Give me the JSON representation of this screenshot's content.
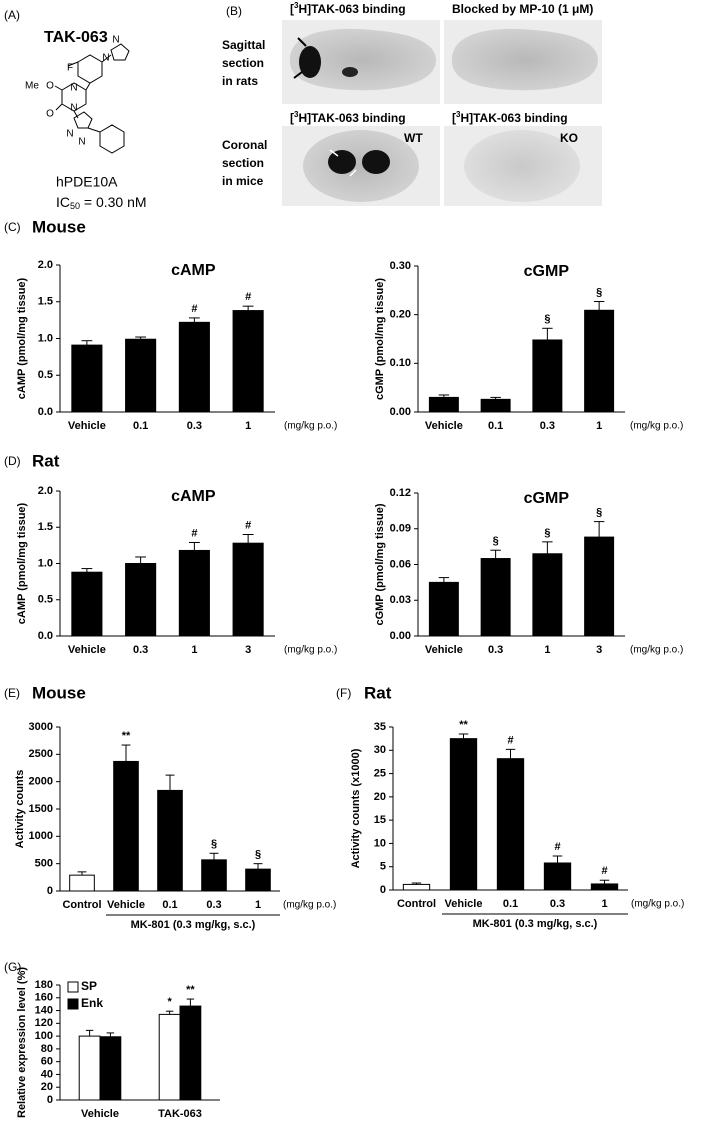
{
  "panel_a": {
    "label": "(A)",
    "title": "TAK-063",
    "atoms": [
      "F",
      "N",
      "N",
      "O",
      "Me",
      "N",
      "N",
      "O",
      "N",
      "N"
    ],
    "target": "hPDE10A",
    "ic50": {
      "pre": "IC",
      "sub": "50",
      "post": " = 0.30 nM"
    }
  },
  "panel_b": {
    "label": "(B)",
    "headers": [
      {
        "pre": "[",
        "sup": "3",
        "post": "H]TAK-063 binding"
      },
      "Blocked by MP-10 (1 μM)",
      {
        "pre": "[",
        "sup": "3",
        "post": "H]TAK-063 binding"
      },
      {
        "pre": "[",
        "sup": "3",
        "post": "H]TAK-063 binding"
      }
    ],
    "row_labels": [
      [
        "Sagittal",
        "section",
        "in rats"
      ],
      [
        "Coronal",
        "section",
        "in mice"
      ]
    ],
    "image_labels": [
      "WT",
      "KO"
    ]
  },
  "sections": [
    {
      "label": "(C)",
      "title": "Mouse"
    },
    {
      "label": "(D)",
      "title": "Rat"
    },
    {
      "label": "(E)",
      "title": "Mouse"
    },
    {
      "label": "(F)",
      "title": "Rat"
    },
    {
      "label": "(G)"
    }
  ],
  "chart_data": [
    {
      "type": "bar",
      "title": "cAMP",
      "y_label": "cAMP (pmol/mg tissue)",
      "x_note": "(mg/kg p.o.)",
      "categories": [
        "Vehicle",
        "0.1",
        "0.3",
        "1"
      ],
      "values": [
        0.91,
        0.99,
        1.22,
        1.38
      ],
      "errors": [
        0.06,
        0.03,
        0.06,
        0.06
      ],
      "annotations": [
        null,
        null,
        "#",
        "#"
      ],
      "color": "#000000",
      "ylim": [
        0,
        2
      ],
      "yticks": [
        {
          "value": 0,
          "label": "0.0"
        },
        0.5,
        {
          "value": 1,
          "label": "1.0"
        },
        1.5,
        {
          "value": 2,
          "label": "2.0"
        }
      ]
    },
    {
      "type": "bar",
      "title": "cGMP",
      "y_label": "cGMP (pmol/mg tissue)",
      "x_note": "(mg/kg p.o.)",
      "categories": [
        "Vehicle",
        "0.1",
        "0.3",
        "1"
      ],
      "values": [
        0.03,
        0.026,
        0.148,
        0.209
      ],
      "errors": [
        0.005,
        0.004,
        0.024,
        0.018
      ],
      "annotations": [
        null,
        null,
        "§",
        "§"
      ],
      "color": "#000000",
      "ylim": [
        0,
        0.3
      ],
      "yticks": [
        {
          "value": 0,
          "label": "0.00"
        },
        {
          "value": 0.1,
          "label": "0.10"
        },
        {
          "value": 0.2,
          "label": "0.20"
        },
        {
          "value": 0.3,
          "label": "0.30"
        }
      ]
    },
    {
      "type": "bar",
      "title": "cAMP",
      "y_label": "cAMP (pmol/mg tissue)",
      "x_note": "(mg/kg p.o.)",
      "categories": [
        "Vehicle",
        "0.3",
        "1",
        "3"
      ],
      "values": [
        0.88,
        1.0,
        1.18,
        1.28
      ],
      "errors": [
        0.05,
        0.09,
        0.11,
        0.12
      ],
      "annotations": [
        null,
        null,
        "#",
        "#"
      ],
      "color": "#000000",
      "ylim": [
        0,
        2
      ],
      "yticks": [
        {
          "value": 0,
          "label": "0.0"
        },
        0.5,
        {
          "value": 1,
          "label": "1.0"
        },
        1.5,
        {
          "value": 2,
          "label": "2.0"
        }
      ]
    },
    {
      "type": "bar",
      "title": "cGMP",
      "y_label": "cGMP (pmol/mg tissue)",
      "x_note": "(mg/kg p.o.)",
      "categories": [
        "Vehicle",
        "0.3",
        "1",
        "3"
      ],
      "values": [
        0.045,
        0.065,
        0.069,
        0.083
      ],
      "errors": [
        0.004,
        0.007,
        0.01,
        0.013
      ],
      "annotations": [
        null,
        "§",
        "§",
        "§"
      ],
      "color": "#000000",
      "ylim": [
        0,
        0.12
      ],
      "yticks": [
        {
          "value": 0,
          "label": "0.00"
        },
        0.03,
        0.06,
        0.09,
        0.12
      ]
    },
    {
      "type": "bar",
      "y_label": "Activity counts",
      "x_note": "(mg/kg p.o.)",
      "group_label": "MK-801 (0.3 mg/kg, s.c.)",
      "categories": [
        "Control",
        "Vehicle",
        "0.1",
        "0.3",
        "1"
      ],
      "values": [
        290,
        2370,
        1840,
        570,
        400
      ],
      "errors": [
        60,
        300,
        280,
        120,
        100
      ],
      "annotations": [
        null,
        "**",
        null,
        "§",
        "§"
      ],
      "colors": [
        "#ffffff",
        "#000000",
        "#000000",
        "#000000",
        "#000000"
      ],
      "ylim": [
        0,
        3000
      ],
      "yticks": [
        0,
        500,
        1000,
        1500,
        2000,
        2500,
        3000
      ]
    },
    {
      "type": "bar",
      "y_label": "Activity counts (x1000)",
      "x_note": "(mg/kg p.o.)",
      "group_label": "MK-801 (0.3 mg/kg, s.c.)",
      "categories": [
        "Control",
        "Vehicle",
        "0.1",
        "0.3",
        "1"
      ],
      "values": [
        1.2,
        32.5,
        28.2,
        5.8,
        1.3
      ],
      "errors": [
        0.3,
        1.0,
        2.0,
        1.5,
        0.8
      ],
      "annotations": [
        null,
        "**",
        "#",
        "#",
        "#"
      ],
      "colors": [
        "#ffffff",
        "#000000",
        "#000000",
        "#000000",
        "#000000"
      ],
      "ylim": [
        0,
        35
      ],
      "yticks": [
        0,
        5,
        10,
        15,
        20,
        25,
        30,
        35
      ]
    },
    {
      "type": "bar",
      "y_label": "Relative expression level (%)",
      "legend": "upper left",
      "categories": [
        "Vehicle",
        "TAK-063"
      ],
      "series": [
        {
          "name": "SP",
          "color": "#ffffff",
          "values": [
            100,
            134
          ],
          "errors": [
            9,
            5
          ],
          "annotations": [
            null,
            "*"
          ]
        },
        {
          "name": "Enk",
          "color": "#000000",
          "values": [
            99,
            147
          ],
          "errors": [
            6,
            11
          ],
          "annotations": [
            null,
            "**"
          ]
        }
      ],
      "ylim": [
        0,
        180
      ],
      "yticks": [
        0,
        20,
        40,
        60,
        80,
        100,
        120,
        140,
        160,
        180
      ]
    }
  ]
}
